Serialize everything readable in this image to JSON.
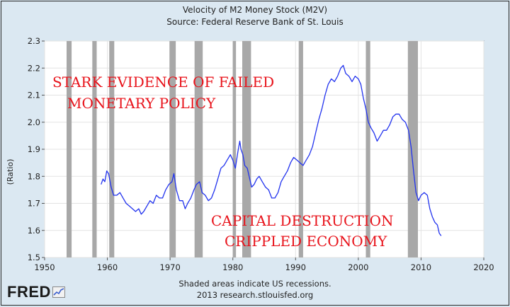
{
  "chart_data": {
    "type": "line",
    "title": "Velocity of M2 Money Stock (M2V)",
    "subtitle": "Source: Federal Reserve Bank of St. Louis",
    "ylabel": "(Ratio)",
    "xlabel": "",
    "xlim": [
      1950,
      2020
    ],
    "ylim": [
      1.5,
      2.3
    ],
    "x_ticks": [
      1950,
      1960,
      1970,
      1980,
      1990,
      2000,
      2010,
      2020
    ],
    "y_ticks": [
      "1.5",
      "1.6",
      "1.7",
      "1.8",
      "1.9",
      "2.0",
      "2.1",
      "2.2",
      "2.3"
    ],
    "grid": true,
    "line_color": "#2233ee",
    "recession_color": "#a8a8a8",
    "recessions": [
      [
        1953.5,
        1954.3
      ],
      [
        1957.6,
        1958.3
      ],
      [
        1960.3,
        1961.1
      ],
      [
        1969.9,
        1970.9
      ],
      [
        1973.9,
        1975.2
      ],
      [
        1980.0,
        1980.5
      ],
      [
        1981.5,
        1982.9
      ],
      [
        1990.5,
        1991.2
      ],
      [
        2001.2,
        2001.9
      ],
      [
        2007.9,
        2009.5
      ]
    ],
    "series": [
      {
        "values": [
          [
            1959.0,
            1.77
          ],
          [
            1959.3,
            1.79
          ],
          [
            1959.6,
            1.78
          ],
          [
            1959.9,
            1.82
          ],
          [
            1960.2,
            1.81
          ],
          [
            1960.6,
            1.76
          ],
          [
            1961.0,
            1.73
          ],
          [
            1961.5,
            1.73
          ],
          [
            1962.0,
            1.74
          ],
          [
            1962.5,
            1.72
          ],
          [
            1963.0,
            1.7
          ],
          [
            1963.5,
            1.69
          ],
          [
            1964.0,
            1.68
          ],
          [
            1964.5,
            1.67
          ],
          [
            1965.0,
            1.68
          ],
          [
            1965.4,
            1.66
          ],
          [
            1965.8,
            1.67
          ],
          [
            1966.3,
            1.69
          ],
          [
            1966.8,
            1.71
          ],
          [
            1967.3,
            1.7
          ],
          [
            1967.8,
            1.73
          ],
          [
            1968.3,
            1.72
          ],
          [
            1968.8,
            1.72
          ],
          [
            1969.3,
            1.75
          ],
          [
            1969.8,
            1.77
          ],
          [
            1970.3,
            1.78
          ],
          [
            1970.6,
            1.81
          ],
          [
            1971.0,
            1.75
          ],
          [
            1971.5,
            1.71
          ],
          [
            1972.0,
            1.71
          ],
          [
            1972.4,
            1.68
          ],
          [
            1972.8,
            1.7
          ],
          [
            1973.3,
            1.72
          ],
          [
            1973.8,
            1.75
          ],
          [
            1974.2,
            1.77
          ],
          [
            1974.7,
            1.78
          ],
          [
            1975.1,
            1.74
          ],
          [
            1975.6,
            1.73
          ],
          [
            1976.1,
            1.71
          ],
          [
            1976.6,
            1.72
          ],
          [
            1977.1,
            1.75
          ],
          [
            1977.6,
            1.79
          ],
          [
            1978.1,
            1.83
          ],
          [
            1978.6,
            1.84
          ],
          [
            1979.1,
            1.86
          ],
          [
            1979.6,
            1.88
          ],
          [
            1980.0,
            1.86
          ],
          [
            1980.4,
            1.83
          ],
          [
            1980.8,
            1.89
          ],
          [
            1981.1,
            1.93
          ],
          [
            1981.3,
            1.9
          ],
          [
            1981.6,
            1.88
          ],
          [
            1981.9,
            1.84
          ],
          [
            1982.3,
            1.83
          ],
          [
            1982.7,
            1.79
          ],
          [
            1983.0,
            1.76
          ],
          [
            1983.4,
            1.77
          ],
          [
            1983.8,
            1.79
          ],
          [
            1984.2,
            1.8
          ],
          [
            1984.7,
            1.78
          ],
          [
            1985.2,
            1.76
          ],
          [
            1985.7,
            1.75
          ],
          [
            1986.2,
            1.72
          ],
          [
            1986.7,
            1.72
          ],
          [
            1987.2,
            1.74
          ],
          [
            1987.7,
            1.78
          ],
          [
            1988.2,
            1.8
          ],
          [
            1988.7,
            1.82
          ],
          [
            1989.2,
            1.85
          ],
          [
            1989.7,
            1.87
          ],
          [
            1990.2,
            1.86
          ],
          [
            1990.7,
            1.85
          ],
          [
            1991.2,
            1.84
          ],
          [
            1991.7,
            1.86
          ],
          [
            1992.2,
            1.88
          ],
          [
            1992.7,
            1.91
          ],
          [
            1993.2,
            1.96
          ],
          [
            1993.7,
            2.01
          ],
          [
            1994.2,
            2.05
          ],
          [
            1994.7,
            2.1
          ],
          [
            1995.2,
            2.14
          ],
          [
            1995.7,
            2.16
          ],
          [
            1996.2,
            2.15
          ],
          [
            1996.7,
            2.17
          ],
          [
            1997.2,
            2.2
          ],
          [
            1997.6,
            2.21
          ],
          [
            1998.0,
            2.18
          ],
          [
            1998.5,
            2.17
          ],
          [
            1999.0,
            2.15
          ],
          [
            1999.5,
            2.17
          ],
          [
            2000.0,
            2.16
          ],
          [
            2000.4,
            2.14
          ],
          [
            2000.8,
            2.09
          ],
          [
            2001.2,
            2.05
          ],
          [
            2001.6,
            2.0
          ],
          [
            2002.0,
            1.98
          ],
          [
            2002.5,
            1.96
          ],
          [
            2003.0,
            1.93
          ],
          [
            2003.5,
            1.95
          ],
          [
            2004.0,
            1.97
          ],
          [
            2004.5,
            1.97
          ],
          [
            2005.0,
            1.99
          ],
          [
            2005.5,
            2.02
          ],
          [
            2006.0,
            2.03
          ],
          [
            2006.5,
            2.03
          ],
          [
            2007.0,
            2.01
          ],
          [
            2007.5,
            2.0
          ],
          [
            2008.0,
            1.97
          ],
          [
            2008.4,
            1.91
          ],
          [
            2008.8,
            1.82
          ],
          [
            2009.2,
            1.74
          ],
          [
            2009.6,
            1.71
          ],
          [
            2010.0,
            1.73
          ],
          [
            2010.5,
            1.74
          ],
          [
            2011.0,
            1.73
          ],
          [
            2011.4,
            1.68
          ],
          [
            2011.8,
            1.65
          ],
          [
            2012.2,
            1.63
          ],
          [
            2012.6,
            1.62
          ],
          [
            2012.9,
            1.59
          ],
          [
            2013.2,
            1.58
          ]
        ]
      }
    ],
    "annotations": [
      "STARK EVIDENCE OF FAILED",
      "MONETARY POLICY",
      "CAPITAL DESTRUCTION",
      "CRIPPLED ECONOMY"
    ],
    "footer": [
      "Shaded areas indicate US recessions.",
      "2013 research.stlouisfed.org"
    ]
  },
  "logo": {
    "text": "FRED"
  }
}
